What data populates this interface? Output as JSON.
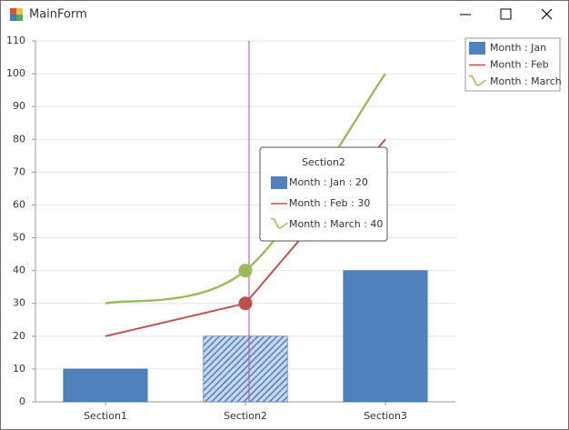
{
  "window": {
    "title": "MainForm"
  },
  "chart_data": {
    "type": "bar",
    "categories": [
      "Section1",
      "Section2",
      "Section3"
    ],
    "series": [
      {
        "name": "Month : Jan",
        "type": "bar",
        "color": "#4f81bd",
        "values": [
          10,
          20,
          40
        ]
      },
      {
        "name": "Month : Feb",
        "type": "line",
        "color": "#c0504d",
        "values": [
          20,
          30,
          80
        ]
      },
      {
        "name": "Month : March",
        "type": "spline",
        "color": "#9bbb59",
        "values": [
          30,
          40,
          100
        ]
      }
    ],
    "ylim": [
      0,
      110
    ],
    "yticks": [
      0,
      10,
      20,
      30,
      40,
      50,
      60,
      70,
      80,
      90,
      100,
      110
    ],
    "grid": true,
    "legend": "top-right",
    "tooltip": {
      "title": "Section2",
      "items": [
        "Month : Jan : 20",
        "Month : Feb : 30",
        "Month : March : 40"
      ]
    }
  }
}
